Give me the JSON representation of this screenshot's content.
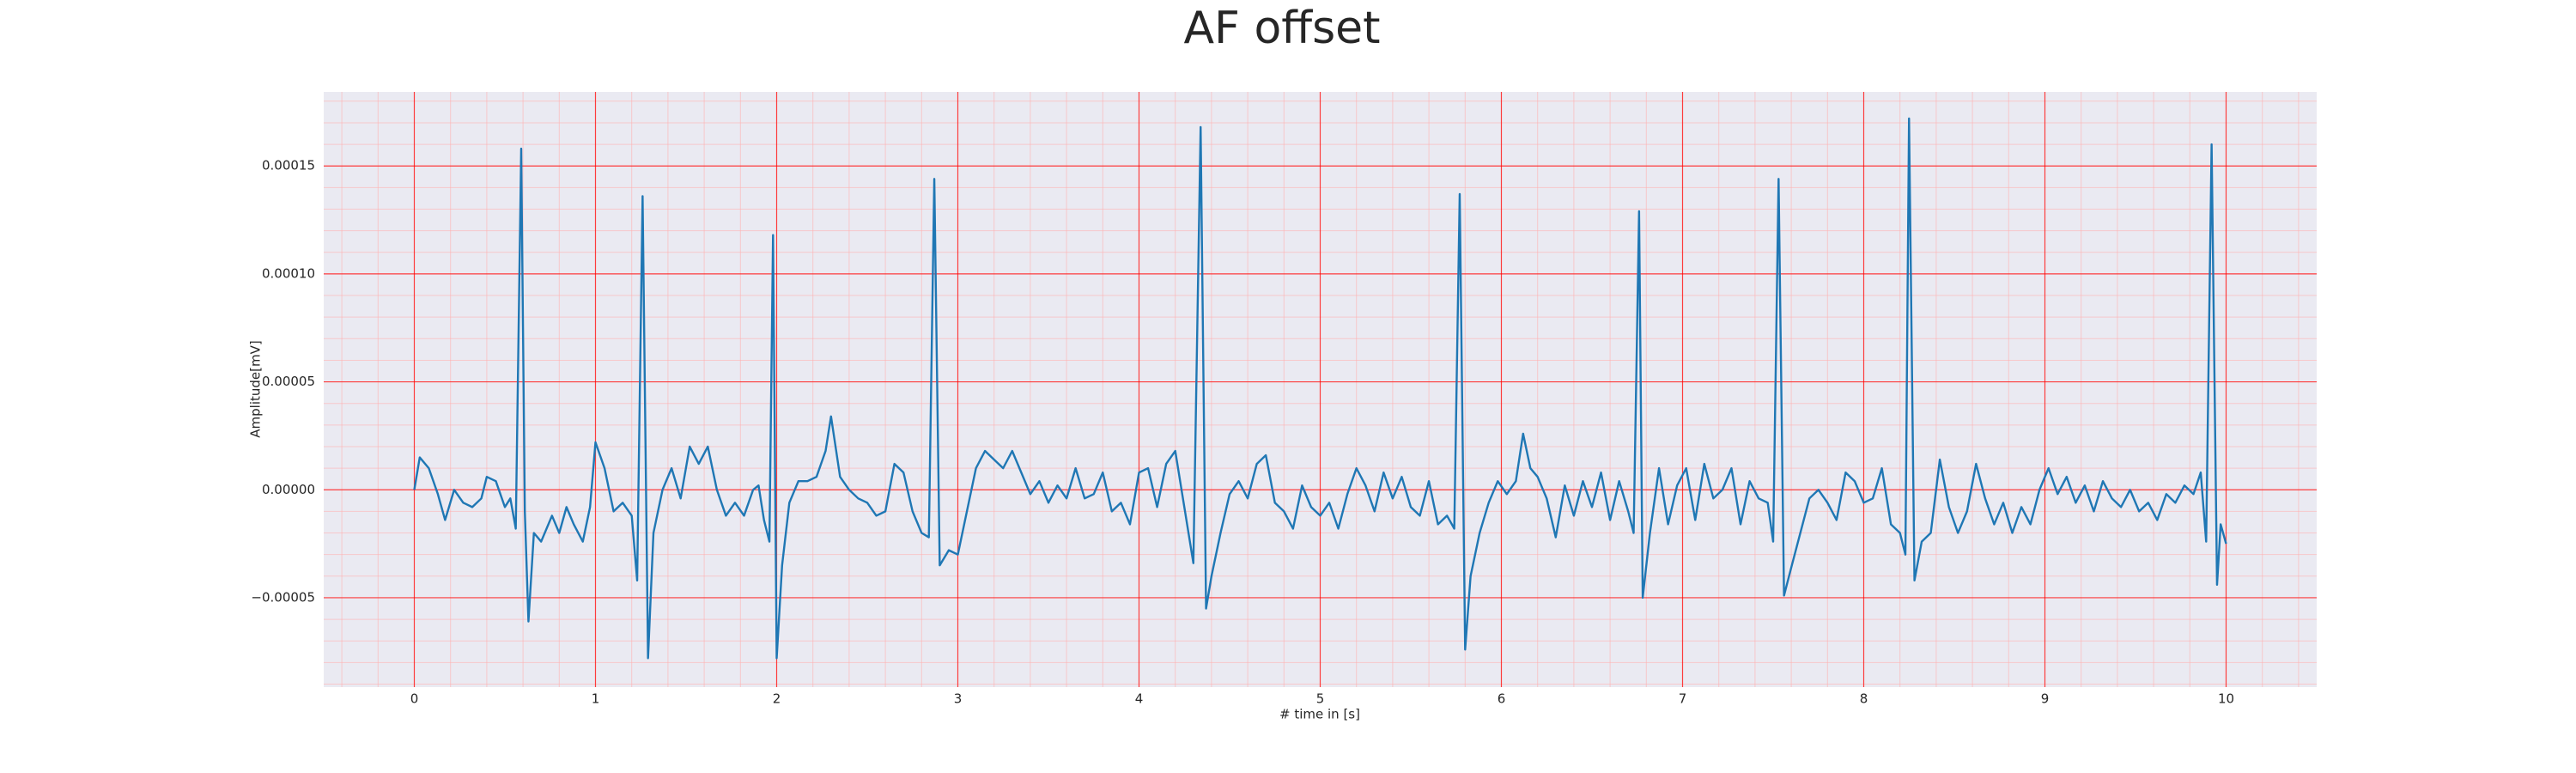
{
  "chart_data": {
    "type": "line",
    "title": "AF offset",
    "xlabel": "# time in [s]",
    "ylabel": "Amplitude[mV]",
    "xlim": [
      -0.5,
      10.5
    ],
    "ylim": [
      -9.14e-05,
      0.0001843
    ],
    "xticks": [
      0,
      1,
      2,
      3,
      4,
      5,
      6,
      7,
      8,
      9,
      10
    ],
    "yticks": [
      {
        "value": -5e-05,
        "label": "−0.00005"
      },
      {
        "value": 0,
        "label": "0.00000"
      },
      {
        "value": 5e-05,
        "label": "0.00005"
      },
      {
        "value": 0.0001,
        "label": "0.00010"
      },
      {
        "value": 0.00015,
        "label": "0.00015"
      }
    ],
    "grid": true,
    "grid_color": "#ff0000",
    "minor_grid": true,
    "minor_grid_color": "#ffb0b0",
    "minor_divisions": 5,
    "background": "#eaeaf2",
    "x": [
      0,
      0.03,
      0.08,
      0.13,
      0.17,
      0.22,
      0.27,
      0.32,
      0.37,
      0.4,
      0.45,
      0.5,
      0.53,
      0.56,
      0.59,
      0.61,
      0.63,
      0.66,
      0.7,
      0.76,
      0.8,
      0.84,
      0.88,
      0.93,
      0.97,
      1.0,
      1.05,
      1.1,
      1.15,
      1.2,
      1.23,
      1.26,
      1.29,
      1.32,
      1.37,
      1.42,
      1.47,
      1.52,
      1.57,
      1.62,
      1.67,
      1.72,
      1.77,
      1.82,
      1.87,
      1.9,
      1.93,
      1.96,
      1.98,
      2.0,
      2.03,
      2.07,
      2.12,
      2.17,
      2.22,
      2.27,
      2.3,
      2.35,
      2.4,
      2.45,
      2.5,
      2.55,
      2.6,
      2.65,
      2.7,
      2.75,
      2.8,
      2.84,
      2.87,
      2.9,
      2.95,
      3.0,
      3.05,
      3.1,
      3.15,
      3.2,
      3.25,
      3.3,
      3.35,
      3.4,
      3.45,
      3.5,
      3.55,
      3.6,
      3.65,
      3.7,
      3.75,
      3.8,
      3.85,
      3.9,
      3.95,
      4.0,
      4.05,
      4.1,
      4.15,
      4.2,
      4.25,
      4.3,
      4.34,
      4.37,
      4.4,
      4.45,
      4.5,
      4.55,
      4.6,
      4.65,
      4.7,
      4.75,
      4.8,
      4.85,
      4.9,
      4.95,
      5.0,
      5.05,
      5.1,
      5.15,
      5.2,
      5.25,
      5.3,
      5.35,
      5.4,
      5.45,
      5.5,
      5.55,
      5.6,
      5.65,
      5.7,
      5.74,
      5.77,
      5.8,
      5.83,
      5.88,
      5.93,
      5.98,
      6.03,
      6.08,
      6.12,
      6.16,
      6.2,
      6.25,
      6.3,
      6.35,
      6.4,
      6.45,
      6.5,
      6.55,
      6.6,
      6.65,
      6.7,
      6.73,
      6.76,
      6.78,
      6.82,
      6.87,
      6.92,
      6.97,
      7.02,
      7.07,
      7.12,
      7.17,
      7.22,
      7.27,
      7.32,
      7.37,
      7.42,
      7.47,
      7.5,
      7.53,
      7.56,
      7.6,
      7.65,
      7.7,
      7.75,
      7.8,
      7.85,
      7.9,
      7.95,
      8.0,
      8.05,
      8.1,
      8.15,
      8.2,
      8.23,
      8.25,
      8.28,
      8.32,
      8.37,
      8.42,
      8.47,
      8.52,
      8.57,
      8.62,
      8.67,
      8.72,
      8.77,
      8.82,
      8.87,
      8.92,
      8.97,
      9.02,
      9.07,
      9.12,
      9.17,
      9.22,
      9.27,
      9.32,
      9.37,
      9.42,
      9.47,
      9.52,
      9.57,
      9.62,
      9.67,
      9.72,
      9.77,
      9.82,
      9.86,
      9.89,
      9.92,
      9.95,
      9.97,
      10.0
    ],
    "series": [
      {
        "color": "#1f77b4",
        "values": [
          0,
          1.5e-05,
          1e-05,
          -2e-06,
          -1.4e-05,
          0,
          -6e-06,
          -8e-06,
          -4e-06,
          6e-06,
          4e-06,
          -8e-06,
          -4e-06,
          -1.8e-05,
          0.000158,
          -1e-05,
          -6.1e-05,
          -2e-05,
          -2.4e-05,
          -1.2e-05,
          -2e-05,
          -8e-06,
          -1.6e-05,
          -2.4e-05,
          -8e-06,
          2.2e-05,
          1e-05,
          -1e-05,
          -6e-06,
          -1.2e-05,
          -4.2e-05,
          0.000136,
          -7.8e-05,
          -2e-05,
          0,
          1e-05,
          -4e-06,
          2e-05,
          1.2e-05,
          2e-05,
          0,
          -1.2e-05,
          -6e-06,
          -1.2e-05,
          0,
          2e-06,
          -1.4e-05,
          -2.4e-05,
          0.000118,
          -7.8e-05,
          -3.5e-05,
          -6e-06,
          4e-06,
          4e-06,
          6e-06,
          1.8e-05,
          3.4e-05,
          6e-06,
          0,
          -4e-06,
          -6e-06,
          -1.2e-05,
          -1e-05,
          1.2e-05,
          8e-06,
          -1e-05,
          -2e-05,
          -2.2e-05,
          0.000144,
          -3.5e-05,
          -2.8e-05,
          -3e-05,
          -1e-05,
          1e-05,
          1.8e-05,
          1.4e-05,
          1e-05,
          1.8e-05,
          8e-06,
          -2e-06,
          4e-06,
          -6e-06,
          2e-06,
          -4e-06,
          1e-05,
          -4e-06,
          -2e-06,
          8e-06,
          -1e-05,
          -6e-06,
          -1.6e-05,
          8e-06,
          1e-05,
          -8e-06,
          1.2e-05,
          1.8e-05,
          -8e-06,
          -3.4e-05,
          0.000168,
          -5.5e-05,
          -4e-05,
          -2e-05,
          -2e-06,
          4e-06,
          -4e-06,
          1.2e-05,
          1.6e-05,
          -6e-06,
          -1e-05,
          -1.8e-05,
          2e-06,
          -8e-06,
          -1.2e-05,
          -6e-06,
          -1.8e-05,
          -2e-06,
          1e-05,
          2e-06,
          -1e-05,
          8e-06,
          -4e-06,
          6e-06,
          -8e-06,
          -1.2e-05,
          4e-06,
          -1.6e-05,
          -1.2e-05,
          -1.8e-05,
          0.000137,
          -7.4e-05,
          -4e-05,
          -2e-05,
          -6e-06,
          4e-06,
          -2e-06,
          4e-06,
          2.6e-05,
          1e-05,
          6e-06,
          -4e-06,
          -2.2e-05,
          2e-06,
          -1.2e-05,
          4e-06,
          -8e-06,
          8e-06,
          -1.4e-05,
          4e-06,
          -1e-05,
          -2e-05,
          0.000129,
          -5e-05,
          -2e-05,
          1e-05,
          -1.6e-05,
          2e-06,
          1e-05,
          -1.4e-05,
          1.2e-05,
          -4e-06,
          0,
          1e-05,
          -1.6e-05,
          4e-06,
          -4e-06,
          -6e-06,
          -2.4e-05,
          0.000144,
          -4.9e-05,
          -3.6e-05,
          -2e-05,
          -4e-06,
          0,
          -6e-06,
          -1.4e-05,
          8e-06,
          4e-06,
          -6e-06,
          -4e-06,
          1e-05,
          -1.6e-05,
          -2e-05,
          -3e-05,
          0.000172,
          -4.2e-05,
          -2.4e-05,
          -2e-05,
          1.4e-05,
          -8e-06,
          -2e-05,
          -1e-05,
          1.2e-05,
          -4e-06,
          -1.6e-05,
          -6e-06,
          -2e-05,
          -8e-06,
          -1.6e-05,
          0,
          1e-05,
          -2e-06,
          6e-06,
          -6e-06,
          2e-06,
          -1e-05,
          4e-06,
          -4e-06,
          -8e-06,
          0,
          -1e-05,
          -6e-06,
          -1.4e-05,
          -2e-06,
          -6e-06,
          2e-06,
          -2e-06,
          8e-06,
          -2.4e-05,
          0.00016,
          -4.4e-05,
          -1.6e-05,
          -2.5e-05
        ]
      }
    ]
  }
}
